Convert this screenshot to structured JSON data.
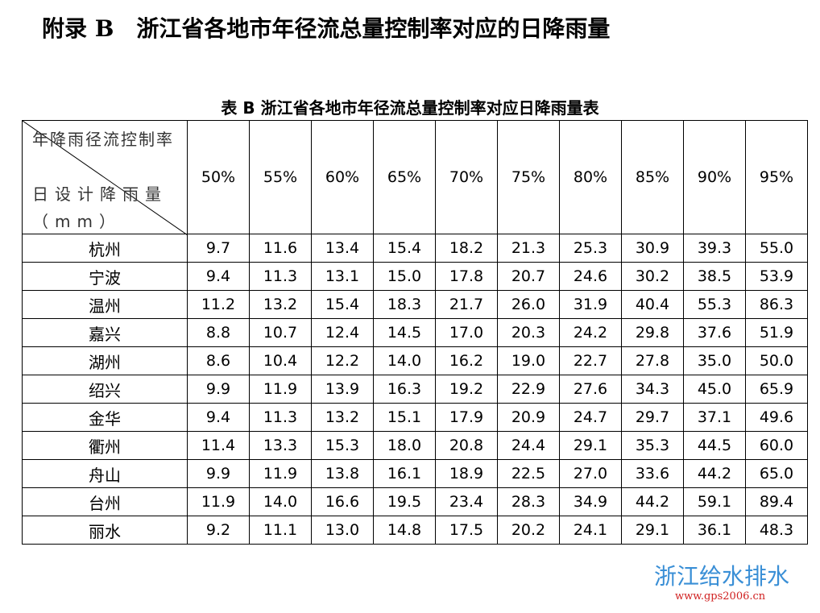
{
  "header": {
    "title": "附录 B　浙江省各地市年径流总量控制率对应的日降雨量"
  },
  "table": {
    "caption": "表 B 浙江省各地市年径流总量控制率对应日降雨量表",
    "corner_top": "年降雨径流控制率",
    "corner_bottom": "日设计降雨量（mm）",
    "columns": [
      "50%",
      "55%",
      "60%",
      "65%",
      "70%",
      "75%",
      "80%",
      "85%",
      "90%",
      "95%"
    ],
    "rows": [
      [
        "杭州",
        "9.7",
        "11.6",
        "13.4",
        "15.4",
        "18.2",
        "21.3",
        "25.3",
        "30.9",
        "39.3",
        "55.0"
      ],
      [
        "宁波",
        "9.4",
        "11.3",
        "13.1",
        "15.0",
        "17.8",
        "20.7",
        "24.6",
        "30.2",
        "38.5",
        "53.9"
      ],
      [
        "温州",
        "11.2",
        "13.2",
        "15.4",
        "18.3",
        "21.7",
        "26.0",
        "31.9",
        "40.4",
        "55.3",
        "86.3"
      ],
      [
        "嘉兴",
        "8.8",
        "10.7",
        "12.4",
        "14.5",
        "17.0",
        "20.3",
        "24.2",
        "29.8",
        "37.6",
        "51.9"
      ],
      [
        "湖州",
        "8.6",
        "10.4",
        "12.2",
        "14.0",
        "16.2",
        "19.0",
        "22.7",
        "27.8",
        "35.0",
        "50.0"
      ],
      [
        "绍兴",
        "9.9",
        "11.9",
        "13.9",
        "16.3",
        "19.2",
        "22.9",
        "27.6",
        "34.3",
        "45.0",
        "65.9"
      ],
      [
        "金华",
        "9.4",
        "11.3",
        "13.2",
        "15.1",
        "17.9",
        "20.9",
        "24.7",
        "29.7",
        "37.1",
        "49.6"
      ],
      [
        "衢州",
        "11.4",
        "13.3",
        "15.3",
        "18.0",
        "20.8",
        "24.4",
        "29.1",
        "35.3",
        "44.5",
        "60.0"
      ],
      [
        "舟山",
        "9.9",
        "11.9",
        "13.8",
        "16.1",
        "18.9",
        "22.5",
        "27.0",
        "33.6",
        "44.2",
        "65.0"
      ],
      [
        "台州",
        "11.9",
        "14.0",
        "16.6",
        "19.5",
        "23.4",
        "28.3",
        "34.9",
        "44.2",
        "59.1",
        "89.4"
      ],
      [
        "丽水",
        "9.2",
        "11.1",
        "13.0",
        "14.8",
        "17.5",
        "20.2",
        "24.1",
        "29.1",
        "36.1",
        "48.3"
      ]
    ]
  },
  "watermark": {
    "name": "浙江给水排水",
    "url": "www.gps2006.cn"
  }
}
